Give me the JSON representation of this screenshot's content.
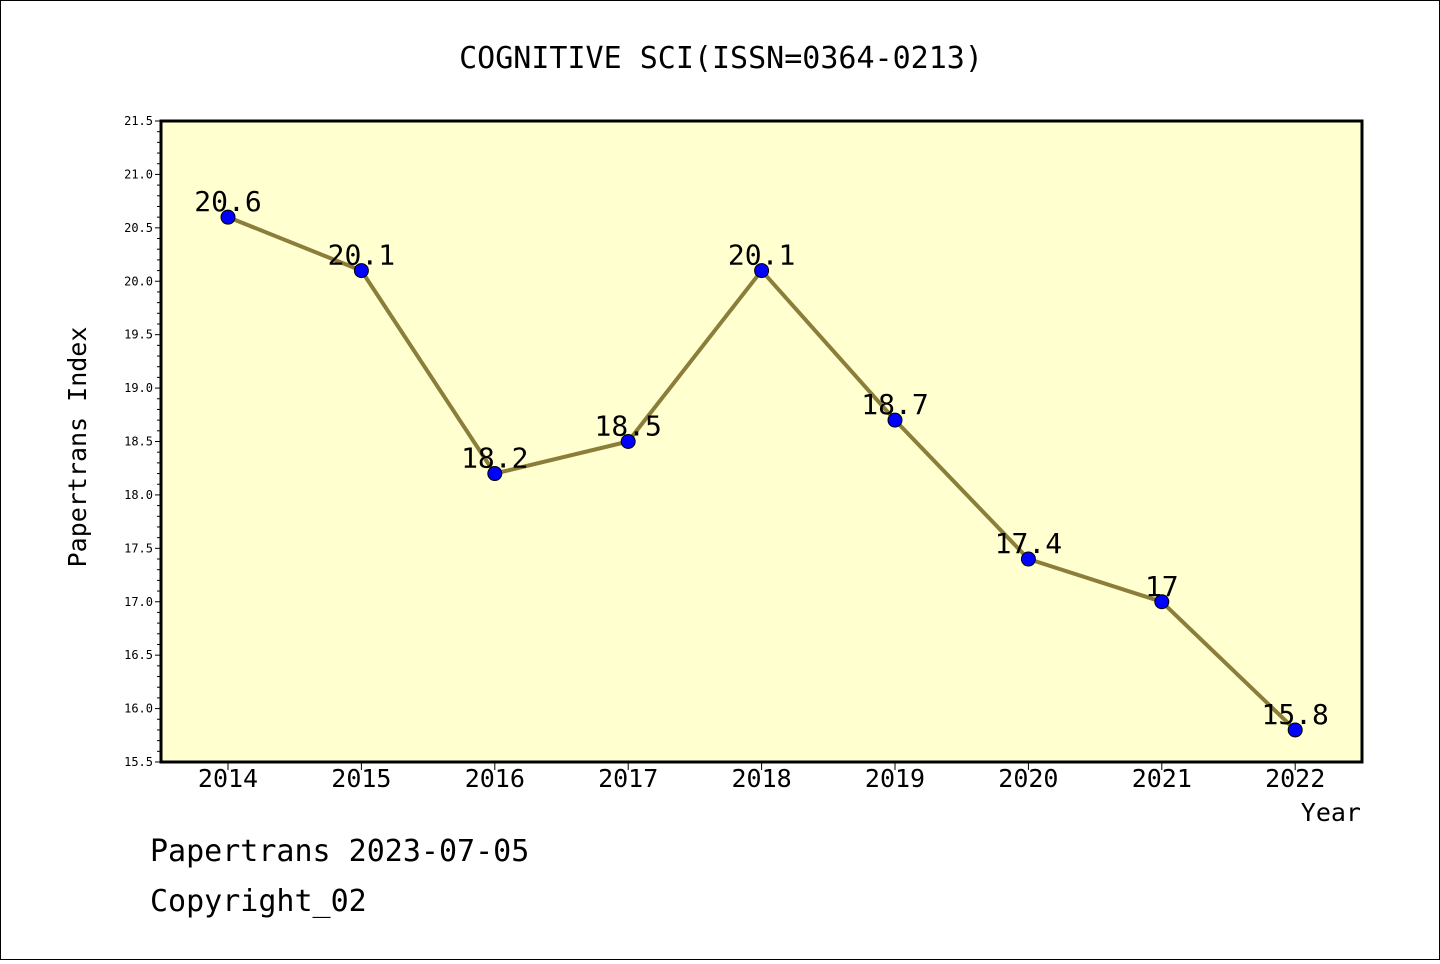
{
  "chart_data": {
    "type": "line",
    "title": "COGNITIVE SCI(ISSN=0364-0213)",
    "xlabel": "Year",
    "ylabel": "Papertrans Index",
    "categories": [
      "2014",
      "2015",
      "2016",
      "2017",
      "2018",
      "2019",
      "2020",
      "2021",
      "2022"
    ],
    "series": [
      {
        "values": [
          20.6,
          20.1,
          18.2,
          18.5,
          20.1,
          18.7,
          17.4,
          17,
          15.8
        ]
      }
    ],
    "data_labels": [
      "20.6",
      "20.1",
      "18.2",
      "18.5",
      "20.1",
      "18.7",
      "17.4",
      "17",
      "15.8"
    ],
    "ylim": [
      15.5,
      21.5
    ],
    "yticks": [
      "15.5",
      "16.0",
      "16.5",
      "17.0",
      "17.5",
      "18.0",
      "18.5",
      "19.0",
      "19.5",
      "20.0",
      "20.5",
      "21.0",
      "21.5"
    ],
    "grid": false,
    "legend": "none",
    "colors": {
      "plot_background": "#ffffd0",
      "line": "#8b7d3a",
      "marker": "#0000ff"
    }
  },
  "footer": {
    "line1": "Papertrans 2023-07-05",
    "line2": "Copyright_02"
  }
}
